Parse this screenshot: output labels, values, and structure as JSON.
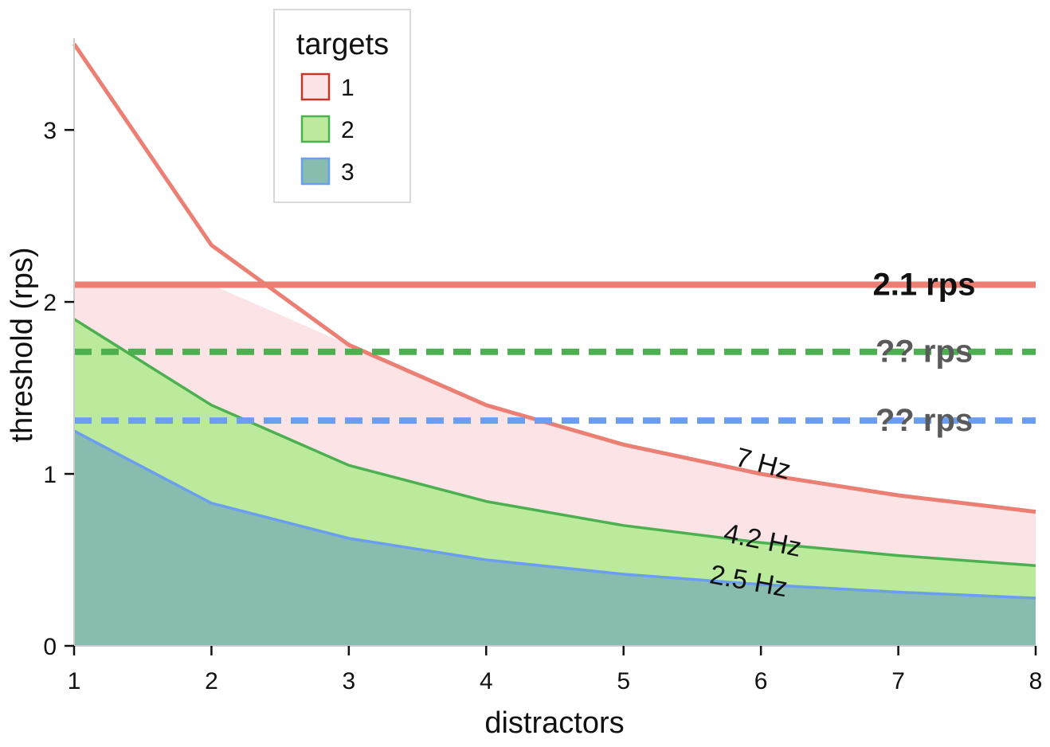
{
  "chart_data": {
    "type": "area",
    "xlabel": "distractors",
    "ylabel": "threshold (rps)",
    "x": [
      1,
      2,
      3,
      4,
      5,
      6,
      7,
      8
    ],
    "xlim": [
      1,
      8
    ],
    "ylim": [
      0,
      3.7
    ],
    "xticks": [
      "1",
      "2",
      "3",
      "4",
      "5",
      "6",
      "7",
      "8"
    ],
    "yticks": [
      "0",
      "1",
      "2",
      "3"
    ],
    "grid": false,
    "legend": {
      "title": "targets",
      "placement": "top-left",
      "entries": [
        {
          "label": "1",
          "fill": "#fbe3e6",
          "stroke": "#c0392b"
        },
        {
          "label": "2",
          "fill": "#bcea9d",
          "stroke": "#4caf50"
        },
        {
          "label": "3",
          "fill": "#87bcae",
          "stroke": "#6b9ef0"
        }
      ]
    },
    "series": [
      {
        "name": "1",
        "frequency_label": "7 Hz",
        "line_color": "#ec7f73",
        "fill": "#fbe3e6",
        "values": [
          3.5,
          2.33,
          1.75,
          1.4,
          1.17,
          1.0,
          0.875,
          0.78
        ]
      },
      {
        "name": "2",
        "frequency_label": "4.2 Hz",
        "line_color": "#4caf50",
        "fill": "#bcea9d",
        "values": [
          1.9,
          1.4,
          1.05,
          0.84,
          0.7,
          0.6,
          0.525,
          0.467
        ]
      },
      {
        "name": "3",
        "frequency_label": "2.5 Hz",
        "line_color": "#6b9ef0",
        "fill": "#87bcae",
        "values": [
          1.25,
          0.83,
          0.625,
          0.5,
          0.417,
          0.357,
          0.3125,
          0.278
        ]
      }
    ],
    "fill_cap": 2.1,
    "reference_lines": [
      {
        "value": 2.1,
        "label": "2.1 rps",
        "color": "#ec7f73",
        "style": "solid",
        "label_color": "#111111"
      },
      {
        "value": 1.71,
        "label": "?? rps",
        "color": "#4caf50",
        "style": "dashed",
        "label_color": "#5a5a5a"
      },
      {
        "value": 1.31,
        "label": "?? rps",
        "color": "#6b9ef0",
        "style": "dashed",
        "label_color": "#5a5a5a"
      }
    ]
  }
}
